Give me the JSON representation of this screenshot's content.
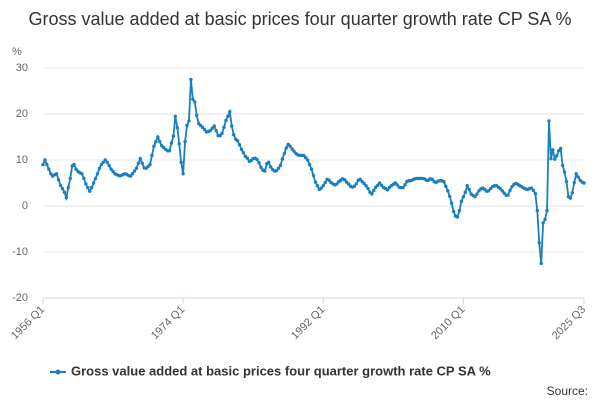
{
  "chart_data": {
    "type": "line",
    "title": "Gross value added at basic prices four quarter growth rate CP SA %",
    "y_label": "%",
    "source": "Source:",
    "categories": [
      "1956 Q1",
      null,
      null,
      null,
      null,
      null,
      null,
      null,
      null,
      null,
      null,
      null,
      null,
      null,
      null,
      null,
      null,
      null,
      null,
      null,
      null,
      null,
      null,
      null,
      null,
      null,
      null,
      null,
      null,
      null,
      null,
      null,
      null,
      null,
      null,
      null,
      null,
      null,
      null,
      null,
      null,
      null,
      null,
      null,
      null,
      null,
      null,
      null,
      null,
      null,
      null,
      null,
      null,
      null,
      null,
      null,
      null,
      null,
      null,
      null,
      null,
      null,
      null,
      null,
      null,
      null,
      null,
      null,
      null,
      null,
      null,
      null,
      "1974 Q1",
      null,
      null,
      null,
      null,
      null,
      null,
      null,
      null,
      null,
      null,
      null,
      null,
      null,
      null,
      null,
      null,
      null,
      null,
      null,
      null,
      null,
      null,
      null,
      null,
      null,
      null,
      null,
      null,
      null,
      null,
      null,
      null,
      null,
      null,
      null,
      null,
      null,
      null,
      null,
      null,
      null,
      null,
      null,
      null,
      null,
      null,
      null,
      null,
      null,
      null,
      null,
      null,
      null,
      null,
      null,
      null,
      null,
      null,
      null,
      null,
      null,
      null,
      null,
      null,
      null,
      null,
      null,
      null,
      null,
      null,
      null,
      "1992 Q1",
      null,
      null,
      null,
      null,
      null,
      null,
      null,
      null,
      null,
      null,
      null,
      null,
      null,
      null,
      null,
      null,
      null,
      null,
      null,
      null,
      null,
      null,
      null,
      null,
      null,
      null,
      null,
      null,
      null,
      null,
      null,
      null,
      null,
      null,
      null,
      null,
      null,
      null,
      null,
      null,
      null,
      null,
      null,
      null,
      null,
      null,
      null,
      null,
      null,
      null,
      null,
      null,
      null,
      null,
      null,
      null,
      null,
      null,
      null,
      null,
      null,
      null,
      null,
      null,
      null,
      null,
      null,
      null,
      null,
      null,
      null,
      "2010 Q1",
      null,
      null,
      null,
      null,
      null,
      null,
      null,
      null,
      null,
      null,
      null,
      null,
      null,
      null,
      null,
      null,
      null,
      null,
      null,
      null,
      null,
      null,
      null,
      null,
      null,
      null,
      null,
      null,
      null,
      null,
      null,
      null,
      null,
      null,
      null,
      null,
      null,
      null,
      null,
      null,
      null,
      null,
      null,
      null,
      null,
      null,
      null,
      null,
      null,
      null,
      null,
      null,
      null,
      null,
      null,
      null,
      null,
      null,
      null,
      null,
      null,
      "2025 Q3"
    ],
    "series": [
      {
        "name": "Gross value added at basic prices four quarter growth rate CP SA %",
        "color": "#1a7fc1",
        "values": [
          9,
          10,
          9,
          8,
          7,
          6.5,
          6.8,
          7,
          5.7,
          4.5,
          3.8,
          3,
          1.8,
          4,
          6,
          8.7,
          9,
          8,
          7.5,
          7.2,
          7,
          6,
          4.8,
          4,
          3.2,
          4,
          5,
          6,
          7,
          8.2,
          9,
          9.5,
          10,
          9.5,
          8.8,
          8,
          7.5,
          7,
          6.8,
          6.6,
          6.6,
          6.8,
          7,
          6.9,
          6.6,
          6.5,
          7,
          7.6,
          8.2,
          9.3,
          10.3,
          9.3,
          8.3,
          8.2,
          8.6,
          9,
          11,
          13,
          14,
          15,
          14,
          13.1,
          12.7,
          12.3,
          12,
          12,
          13.7,
          15.2,
          19.5,
          17,
          13.5,
          9.5,
          7,
          14,
          17.5,
          18.5,
          27.5,
          23.2,
          22.6,
          19.7,
          17.9,
          17.5,
          17.1,
          16.6,
          16.1,
          16.2,
          16.4,
          16.9,
          17.4,
          16.4,
          15.3,
          15.3,
          15.8,
          17.1,
          18.6,
          19.5,
          20.5,
          17.4,
          15.5,
          14.5,
          14.2,
          13.3,
          12.3,
          11.6,
          10.8,
          10.4,
          9.7,
          9.9,
          10.3,
          10.4,
          10.1,
          9.4,
          8.4,
          7.8,
          7.6,
          9.2,
          9.5,
          8.5,
          7.9,
          7.6,
          7.7,
          8.2,
          8.8,
          10.2,
          11.4,
          12.6,
          13.4,
          13,
          12.4,
          11.9,
          11.4,
          11.1,
          11,
          11,
          11,
          10.5,
          10,
          9,
          8,
          6.6,
          5.2,
          4.4,
          3.6,
          3.9,
          4.4,
          5.1,
          5.8,
          5.6,
          5.1,
          4.8,
          4.6,
          4.8,
          5.3,
          5.6,
          5.9,
          5.7,
          5.2,
          4.8,
          4.3,
          4.1,
          4.3,
          4.8,
          5.6,
          5.8,
          5.3,
          4.9,
          4.4,
          3.8,
          3,
          2.6,
          3.4,
          4.1,
          4.5,
          5,
          4.5,
          4,
          3.8,
          3.5,
          4,
          4.4,
          4.7,
          5,
          4.6,
          4.1,
          4,
          4,
          4.6,
          5.3,
          5.5,
          5.5,
          5.7,
          5.9,
          6,
          6,
          6,
          6,
          5.9,
          5.6,
          5.6,
          5.9,
          5.8,
          5.3,
          5.1,
          5.4,
          5.5,
          5.5,
          5.3,
          4.3,
          3.3,
          2.1,
          0.6,
          -1.2,
          -2.2,
          -2.4,
          -1,
          1,
          2,
          3,
          4.4,
          3.6,
          2.6,
          2.3,
          2,
          2.6,
          3.3,
          3.7,
          3.9,
          3.6,
          3.2,
          3.3,
          3.8,
          4.2,
          4.4,
          4.4,
          4.1,
          3.8,
          3.3,
          2.8,
          2.3,
          2.4,
          3.4,
          4.2,
          4.7,
          4.9,
          4.7,
          4.4,
          4.2,
          3.9,
          3.7,
          3.6,
          3.8,
          3.9,
          3.4,
          2.7,
          -1,
          -8,
          -12.5,
          -3.7,
          -2.9,
          -1,
          18.5,
          10.3,
          12.2,
          10.2,
          10.9,
          12,
          12.5,
          8.8,
          7.4,
          5.3,
          2,
          1.7,
          2.9,
          5.1,
          7,
          6.3,
          5.6,
          5.2,
          5
        ]
      }
    ],
    "ylim": [
      -20,
      30
    ],
    "yticks": [
      -20,
      -10,
      0,
      10,
      20,
      30
    ],
    "grid": true
  }
}
